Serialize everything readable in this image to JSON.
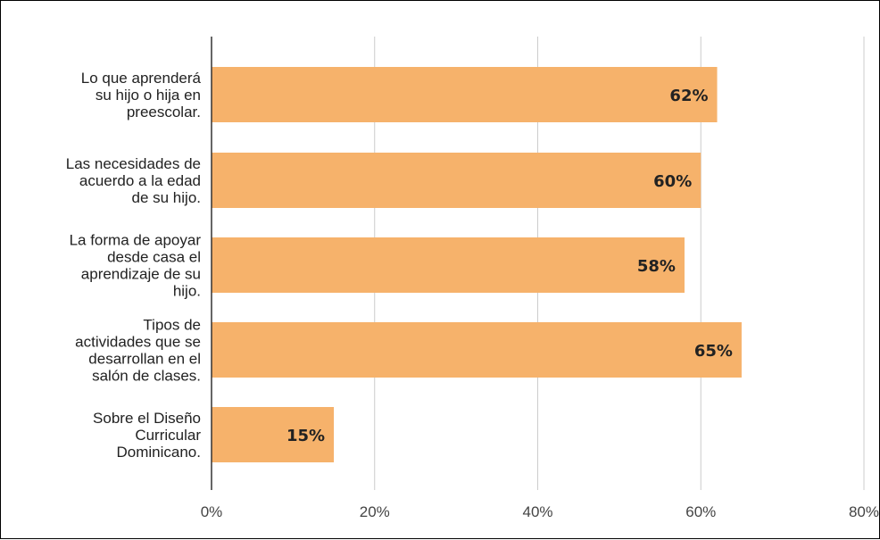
{
  "chart_data": {
    "type": "bar",
    "orientation": "horizontal",
    "categories": [
      [
        "Lo que aprenderá",
        "su hijo o hija en",
        "preescolar."
      ],
      [
        "Las necesidades de",
        "acuerdo a la edad",
        "de su hijo."
      ],
      [
        "La forma de apoyar",
        "desde casa el",
        "aprendizaje de su",
        "hijo."
      ],
      [
        "Tipos de",
        "actividades que se",
        "desarrollan en el",
        "salón de clases."
      ],
      [
        "Sobre el Diseño",
        "Curricular",
        "Dominicano."
      ]
    ],
    "values": [
      62,
      60,
      58,
      65,
      15
    ],
    "data_labels": [
      "62%",
      "60%",
      "58%",
      "65%",
      "15%"
    ],
    "xlim": [
      0,
      80
    ],
    "ticks": [
      0,
      20,
      40,
      60,
      80
    ],
    "tick_labels": [
      "0%",
      "20%",
      "40%",
      "60%",
      "80%"
    ],
    "bar_color": "#f6b26b",
    "gridlines": true,
    "legend": "none"
  }
}
